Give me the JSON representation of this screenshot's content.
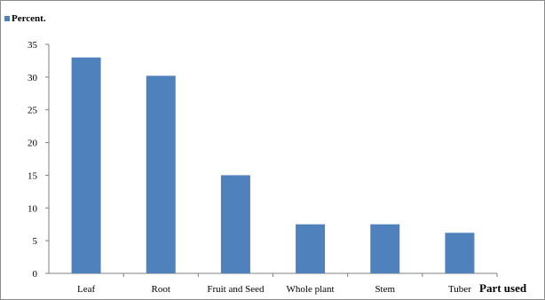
{
  "chart_data": {
    "type": "bar",
    "categories": [
      "Leaf",
      "Root",
      "Fruit and Seed",
      "Whole plant",
      "Stem",
      "Tuber"
    ],
    "series": [
      {
        "name": "Percent.",
        "values": [
          33,
          30.2,
          15,
          7.5,
          7.5,
          6.2
        ]
      }
    ],
    "xlabel": "Part used",
    "ylabel": "",
    "ylim": [
      0,
      35
    ],
    "yticks": [
      "0",
      "5",
      "10",
      "15",
      "20",
      "25",
      "30",
      "35"
    ],
    "grid": false,
    "legend_position": "top-left",
    "colors": {
      "bar": "#4f81bd",
      "axis": "#808080"
    }
  }
}
